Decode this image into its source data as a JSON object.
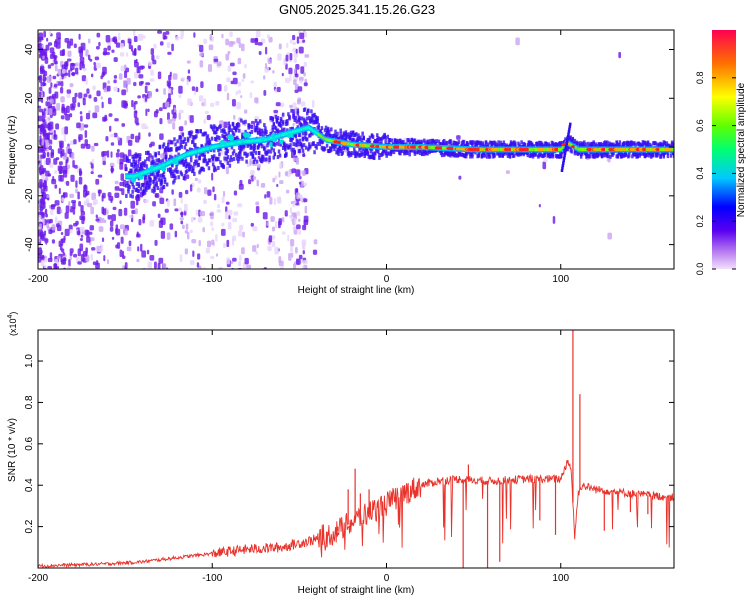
{
  "chart_data": [
    {
      "type": "heatmap",
      "title": "GN05.2025.341.15.26.G23",
      "xlabel": "Height of straight line (km)",
      "ylabel": "Frequency (Hz)",
      "xlim": [
        -200,
        165
      ],
      "ylim": [
        -50,
        48
      ],
      "xticks": [
        -200,
        -100,
        0,
        100
      ],
      "xtick_labels": [
        "-200",
        "-100",
        "0",
        "100"
      ],
      "yticks": [
        -40,
        -20,
        0,
        20,
        40
      ],
      "ytick_labels": [
        "-40",
        "-20",
        "0",
        "20",
        "40"
      ],
      "colorbar": {
        "label": "Normalized spectral amplitude",
        "range": [
          0,
          1
        ],
        "ticks": [
          0.0,
          0.2,
          0.4,
          0.6,
          0.8
        ],
        "tick_labels": [
          "0.0",
          "0.2",
          "0.4",
          "0.6",
          "0.8"
        ]
      },
      "ridge": {
        "x": [
          -145,
          -130,
          -115,
          -100,
          -85,
          -70,
          -55,
          -45,
          -35,
          -20,
          0,
          20,
          50,
          80,
          100,
          103,
          110,
          130,
          165
        ],
        "y": [
          -12,
          -8,
          -3,
          0,
          2,
          3,
          6,
          8,
          3,
          1,
          0,
          0,
          -1,
          -1,
          -1,
          2,
          -1,
          -1,
          -1
        ]
      }
    },
    {
      "type": "line",
      "xlabel": "Height of straight line (km)",
      "ylabel": "SNR (10 * v/v)",
      "y_scale_label": "(x10",
      "y_scale_exp": "4",
      "y_scale_close": ")",
      "xlim": [
        -200,
        165
      ],
      "ylim": [
        0,
        1.15
      ],
      "xticks": [
        -200,
        -100,
        0,
        100
      ],
      "xtick_labels": [
        "-200",
        "-100",
        "0",
        "100"
      ],
      "yticks": [
        0.2,
        0.4,
        0.6,
        0.8,
        1.0
      ],
      "ytick_labels": [
        "0.2",
        "0.4",
        "0.6",
        "0.8",
        "1.0"
      ],
      "series": [
        {
          "name": "SNR",
          "color": "#e8322a",
          "x": [
            -200,
            -160,
            -140,
            -120,
            -100,
            -80,
            -60,
            -50,
            -40,
            -30,
            -20,
            -10,
            0,
            10,
            20,
            30,
            40,
            60,
            80,
            100,
            104,
            106,
            108,
            110,
            112,
            120,
            140,
            165
          ],
          "y": [
            0.01,
            0.02,
            0.03,
            0.05,
            0.07,
            0.09,
            0.1,
            0.12,
            0.14,
            0.17,
            0.22,
            0.27,
            0.31,
            0.36,
            0.4,
            0.42,
            0.43,
            0.42,
            0.43,
            0.43,
            0.52,
            0.48,
            0.15,
            0.36,
            0.4,
            0.38,
            0.36,
            0.34
          ]
        }
      ],
      "spikes": {
        "x": [
          -28,
          -22,
          -18,
          -15,
          -10,
          -5,
          5,
          44,
          47,
          58,
          65,
          88,
          97,
          107,
          111,
          125,
          140,
          150
        ],
        "y": [
          0.2,
          0.38,
          0.48,
          0.36,
          0.38,
          0.32,
          0.34,
          0.0,
          0.5,
          0.0,
          0.03,
          0.23,
          0.16,
          1.15,
          0.84,
          0.18,
          0.27,
          0.26
        ]
      }
    }
  ]
}
